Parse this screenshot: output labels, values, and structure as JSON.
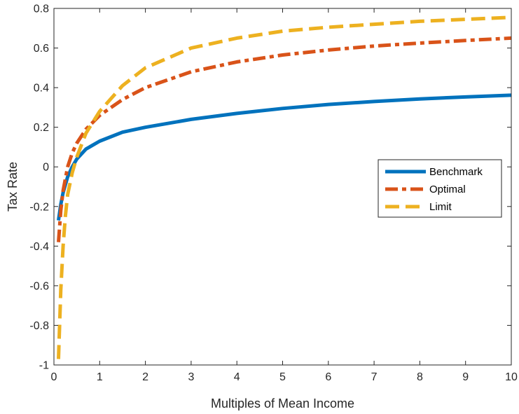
{
  "chart_data": {
    "type": "line",
    "title": "",
    "xlabel": "Multiples of Mean Income",
    "ylabel": "Tax Rate",
    "xlim": [
      0,
      10
    ],
    "ylim": [
      -1,
      0.8
    ],
    "xticks": [
      0,
      1,
      2,
      3,
      4,
      5,
      6,
      7,
      8,
      9,
      10
    ],
    "xtick_labels": [
      "0",
      "1",
      "2",
      "3",
      "4",
      "5",
      "6",
      "7",
      "8",
      "9",
      "10"
    ],
    "yticks": [
      -1,
      -0.8,
      -0.6,
      -0.4,
      -0.2,
      0,
      0.2,
      0.4,
      0.6,
      0.8
    ],
    "ytick_labels": [
      "-1",
      "-0.8",
      "-0.6",
      "-0.4",
      "-0.2",
      "0",
      "0.2",
      "0.4",
      "0.6",
      "0.8"
    ],
    "grid": false,
    "legend_position": "right",
    "series": [
      {
        "name": "Benchmark",
        "color": "#0072BD",
        "style": "solid",
        "x": [
          0.1,
          0.15,
          0.2,
          0.3,
          0.4,
          0.5,
          0.7,
          1,
          1.5,
          2,
          3,
          4,
          5,
          6,
          7,
          8,
          9,
          10
        ],
        "y": [
          -0.27,
          -0.19,
          -0.13,
          -0.05,
          0.0,
          0.04,
          0.09,
          0.13,
          0.175,
          0.2,
          0.24,
          0.27,
          0.295,
          0.315,
          0.33,
          0.343,
          0.353,
          0.362
        ]
      },
      {
        "name": "Optimal",
        "color": "#D95319",
        "style": "dashdot",
        "x": [
          0.1,
          0.15,
          0.2,
          0.3,
          0.4,
          0.5,
          0.7,
          1,
          1.5,
          2,
          3,
          4,
          5,
          6,
          7,
          8,
          9,
          10
        ],
        "y": [
          -0.38,
          -0.22,
          -0.12,
          0.0,
          0.07,
          0.12,
          0.19,
          0.26,
          0.34,
          0.4,
          0.48,
          0.53,
          0.565,
          0.59,
          0.61,
          0.625,
          0.638,
          0.65
        ]
      },
      {
        "name": "Limit",
        "color": "#EDB120",
        "style": "dashed",
        "x": [
          0.1,
          0.15,
          0.2,
          0.25,
          0.3,
          0.4,
          0.5,
          0.7,
          1,
          1.5,
          2,
          3,
          4,
          5,
          6,
          7,
          8,
          9,
          10
        ],
        "y": [
          -0.97,
          -0.62,
          -0.4,
          -0.25,
          -0.14,
          -0.03,
          0.05,
          0.17,
          0.28,
          0.41,
          0.5,
          0.6,
          0.65,
          0.685,
          0.705,
          0.72,
          0.735,
          0.745,
          0.755
        ]
      }
    ]
  }
}
